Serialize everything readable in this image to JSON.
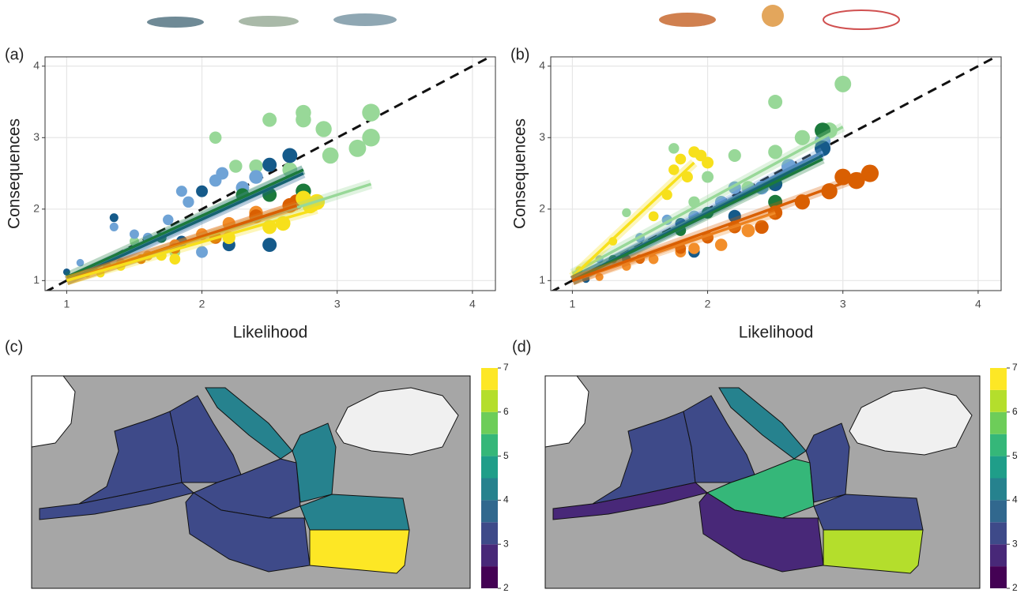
{
  "chart_data": [
    {
      "type": "scatter",
      "label": "(a)",
      "xlabel": "Likelihood",
      "ylabel": "Consequences",
      "xlim": [
        0.84,
        4.17
      ],
      "ylim": [
        0.86,
        4.13
      ],
      "xticks": [
        1,
        2,
        3,
        4
      ],
      "yticks": [
        1,
        2,
        3,
        4
      ],
      "grid": true,
      "reference_line": true,
      "series": [
        {
          "color": "#98d898",
          "x": [
            1.5,
            1.8,
            2.1,
            2.25,
            2.4,
            2.5,
            2.65,
            2.75,
            2.75,
            2.9,
            2.95,
            3.15,
            3.25,
            3.25
          ],
          "values": [
            1.55,
            1.4,
            3.0,
            2.6,
            2.6,
            3.25,
            2.55,
            3.35,
            3.25,
            3.12,
            2.75,
            2.85,
            3.0,
            3.35
          ],
          "fit_x": [
            1,
            3.25
          ],
          "fit_y": [
            1,
            2.35
          ]
        },
        {
          "color": "#6fa3d6",
          "x": [
            1.1,
            1.35,
            1.5,
            1.6,
            1.75,
            1.85,
            1.9,
            2.0,
            2.1,
            2.15,
            2.3,
            2.4
          ],
          "values": [
            1.25,
            1.75,
            1.65,
            1.6,
            1.85,
            2.25,
            2.1,
            1.4,
            2.4,
            2.5,
            2.3,
            2.45
          ],
          "fit_x": [
            1,
            2.75
          ],
          "fit_y": [
            1,
            2.55
          ]
        },
        {
          "color": "#155a8a",
          "x": [
            1,
            1.35,
            1.85,
            2.0,
            2.2,
            2.5,
            2.5,
            2.65
          ],
          "values": [
            1.12,
            1.88,
            1.55,
            2.25,
            1.5,
            2.62,
            1.5,
            2.75
          ],
          "fit_x": [
            1,
            2.75
          ],
          "fit_y": [
            1,
            2.5
          ]
        },
        {
          "color": "#1c7a3c",
          "x": [
            1.2,
            1.7,
            2.3,
            2.5,
            2.75
          ],
          "values": [
            1.15,
            1.6,
            2.2,
            2.2,
            2.25
          ],
          "fit_x": [
            1,
            2.75
          ],
          "fit_y": [
            1.05,
            2.55
          ]
        },
        {
          "color": "#f28e2b",
          "x": [
            1.15,
            1.4,
            1.6,
            1.8,
            2.0,
            2.2,
            2.4
          ],
          "values": [
            1.1,
            1.25,
            1.35,
            1.5,
            1.65,
            1.8,
            1.95
          ],
          "fit_x": [
            1,
            2.7
          ],
          "fit_y": [
            1,
            2.05
          ]
        },
        {
          "color": "#d95f02",
          "x": [
            1.3,
            1.55,
            1.8,
            2.1,
            2.4,
            2.65,
            2.7
          ],
          "values": [
            1.2,
            1.3,
            1.45,
            1.6,
            1.9,
            2.05,
            2.1
          ],
          "fit_x": [
            1,
            2.7
          ],
          "fit_y": [
            1,
            2.05
          ]
        },
        {
          "color": "#f7e01c",
          "x": [
            1.05,
            1.25,
            1.4,
            1.7,
            1.8,
            2.2,
            2.5,
            2.6,
            2.75,
            2.8,
            2.85
          ],
          "values": [
            1.05,
            1.1,
            1.2,
            1.35,
            1.3,
            1.6,
            1.75,
            1.8,
            2.15,
            2.05,
            2.1
          ],
          "fit_x": [
            1,
            2.85
          ],
          "fit_y": [
            1,
            2.0
          ]
        }
      ]
    },
    {
      "type": "scatter",
      "label": "(b)",
      "xlabel": "Likelihood",
      "ylabel": "Consequences",
      "xlim": [
        0.84,
        4.17
      ],
      "ylim": [
        0.86,
        4.13
      ],
      "xticks": [
        1,
        2,
        3,
        4
      ],
      "yticks": [
        1,
        2,
        3,
        4
      ],
      "grid": true,
      "reference_line": true,
      "series": [
        {
          "color": "#98d898",
          "x": [
            1.4,
            1.6,
            1.75,
            1.9,
            2.0,
            2.2,
            2.3,
            2.5,
            2.5,
            2.7,
            2.9,
            3.0
          ],
          "values": [
            1.95,
            1.9,
            2.85,
            2.1,
            2.45,
            2.75,
            2.3,
            3.5,
            2.8,
            3.0,
            3.1,
            3.75
          ],
          "fit_x": [
            1,
            3
          ],
          "fit_y": [
            1.1,
            3.15
          ]
        },
        {
          "color": "#f7e01c",
          "x": [
            1.05,
            1.3,
            1.6,
            1.7,
            1.75,
            1.8,
            1.85,
            1.9,
            1.95,
            2.0
          ],
          "values": [
            1.15,
            1.55,
            1.9,
            2.2,
            2.55,
            2.7,
            2.45,
            2.8,
            2.75,
            2.65
          ],
          "fit_x": [
            1,
            1.9
          ],
          "fit_y": [
            1.05,
            2.65
          ]
        },
        {
          "color": "#6fa3d6",
          "x": [
            1.2,
            1.5,
            1.7,
            1.9,
            2.1,
            2.2,
            2.4,
            2.6,
            2.85
          ],
          "values": [
            1.3,
            1.6,
            1.85,
            1.9,
            2.1,
            2.3,
            2.3,
            2.6,
            2.95
          ],
          "fit_x": [
            1,
            2.85
          ],
          "fit_y": [
            1,
            2.8
          ]
        },
        {
          "color": "#155a8a",
          "x": [
            1.1,
            1.4,
            1.8,
            1.9,
            2.2,
            2.5,
            2.85
          ],
          "values": [
            1.02,
            1.3,
            1.8,
            1.4,
            1.9,
            2.35,
            2.85
          ],
          "fit_x": [
            1,
            2.85
          ],
          "fit_y": [
            1,
            2.75
          ]
        },
        {
          "color": "#1c7a3c",
          "x": [
            1.3,
            1.8,
            2.0,
            2.5,
            2.85
          ],
          "values": [
            1.3,
            1.7,
            1.95,
            2.1,
            3.1
          ],
          "fit_x": [
            1,
            2.85
          ],
          "fit_y": [
            1,
            2.7
          ]
        },
        {
          "color": "#f28e2b",
          "x": [
            1.2,
            1.4,
            1.6,
            1.8,
            1.9,
            2.1,
            2.3,
            2.5
          ],
          "values": [
            1.05,
            1.2,
            1.3,
            1.4,
            1.45,
            1.5,
            1.7,
            1.95
          ],
          "fit_x": [
            1,
            2.5
          ],
          "fit_y": [
            1,
            1.95
          ]
        },
        {
          "color": "#d95f02",
          "x": [
            1.5,
            1.8,
            2.0,
            2.2,
            2.4,
            2.5,
            2.7,
            2.9,
            3.0,
            3.1,
            3.2
          ],
          "values": [
            1.3,
            1.45,
            1.6,
            1.75,
            1.75,
            1.95,
            2.1,
            2.25,
            2.45,
            2.4,
            2.5
          ],
          "fit_x": [
            1,
            3.2
          ],
          "fit_y": [
            1,
            2.5
          ]
        }
      ]
    },
    {
      "type": "map",
      "label": "(c)",
      "values": [
        3,
        3,
        3,
        4,
        3,
        3,
        4,
        4,
        7
      ],
      "clim": [
        2,
        7
      ],
      "cticks": [
        2,
        3,
        4,
        5,
        6,
        7
      ],
      "colors": [
        "#440154",
        "#482878",
        "#3e4a89",
        "#31688e",
        "#26828e",
        "#1f9e89",
        "#35b779",
        "#6dcd59",
        "#b4de2c",
        "#fde725"
      ]
    },
    {
      "type": "map",
      "label": "(d)",
      "values": [
        2.5,
        3,
        3,
        4,
        5,
        2.5,
        3,
        3,
        6
      ],
      "clim": [
        2,
        7
      ],
      "cticks": [
        2,
        3,
        4,
        5,
        6,
        7
      ],
      "colors": [
        "#440154",
        "#482878",
        "#3e4a89",
        "#31688e",
        "#26828e",
        "#1f9e89",
        "#35b779",
        "#6dcd59",
        "#b4de2c",
        "#fde725"
      ]
    }
  ]
}
